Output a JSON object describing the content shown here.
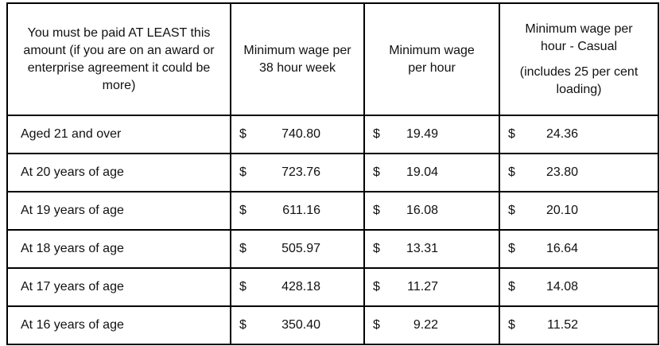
{
  "headers": {
    "col1": "You must be paid AT LEAST this amount (if you are on an award or enterprise agreement it could be more)",
    "col2": "Minimum wage per 38 hour week",
    "col3": "Minimum wage per hour",
    "col4_line1": "Minimum wage per hour - Casual",
    "col4_line2": "(includes 25 per cent loading)"
  },
  "currency": "$",
  "rows": [
    {
      "label": "Aged 21 and over",
      "week": "740.80",
      "hour": "19.49",
      "casual": "24.36"
    },
    {
      "label": "At 20 years of age",
      "week": "723.76",
      "hour": "19.04",
      "casual": "23.80"
    },
    {
      "label": "At 19 years of age",
      "week": "611.16",
      "hour": "16.08",
      "casual": "20.10"
    },
    {
      "label": "At 18 years of age",
      "week": "505.97",
      "hour": "13.31",
      "casual": "16.64"
    },
    {
      "label": "At 17 years of age",
      "week": "428.18",
      "hour": "11.27",
      "casual": "14.08"
    },
    {
      "label": "At 16 years of age",
      "week": "350.40",
      "hour": "9.22",
      "casual": "11.52"
    }
  ]
}
